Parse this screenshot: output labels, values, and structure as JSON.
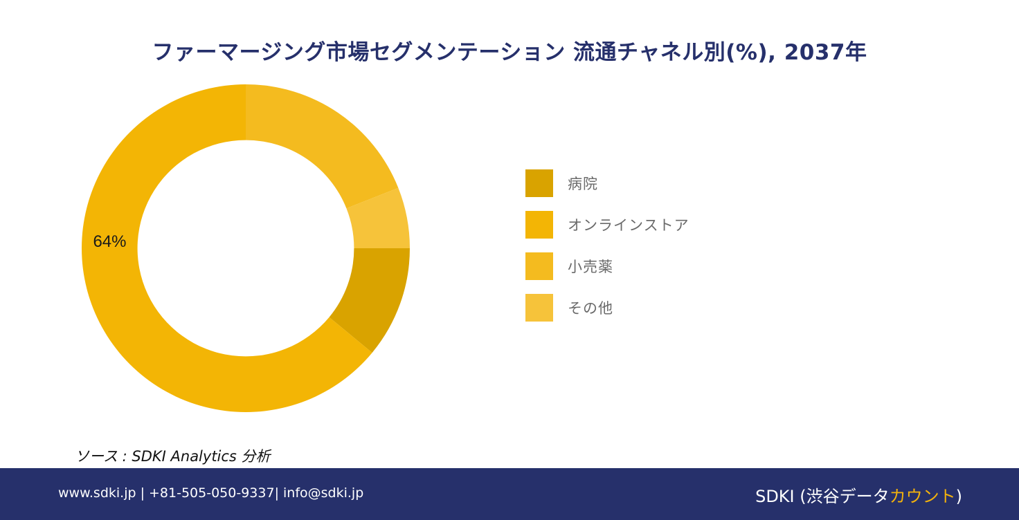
{
  "chart_data": {
    "type": "pie",
    "title": "ファーマージング市場セグメンテーション 流通チャネル別(%), 2037年",
    "categories": [
      "病院",
      "オンラインストア",
      "小売薬",
      "その他"
    ],
    "values": [
      11,
      64,
      19,
      6
    ],
    "colors": [
      "#d9a300",
      "#f3b505",
      "#f4bb1f",
      "#f6c33a"
    ],
    "data_labels": [
      {
        "category": "オンラインストア",
        "text": "64%"
      }
    ],
    "legend_position": "right",
    "inner_radius_ratio": 0.66
  },
  "source": "ソース : SDKI Analytics 分析",
  "footer": {
    "contact": "www.sdki.jp | +81-505-050-9337| info@sdki.jp",
    "brand_prefix": "SDKI (渋谷データ",
    "brand_accent": "カウント",
    "brand_suffix": ")"
  }
}
